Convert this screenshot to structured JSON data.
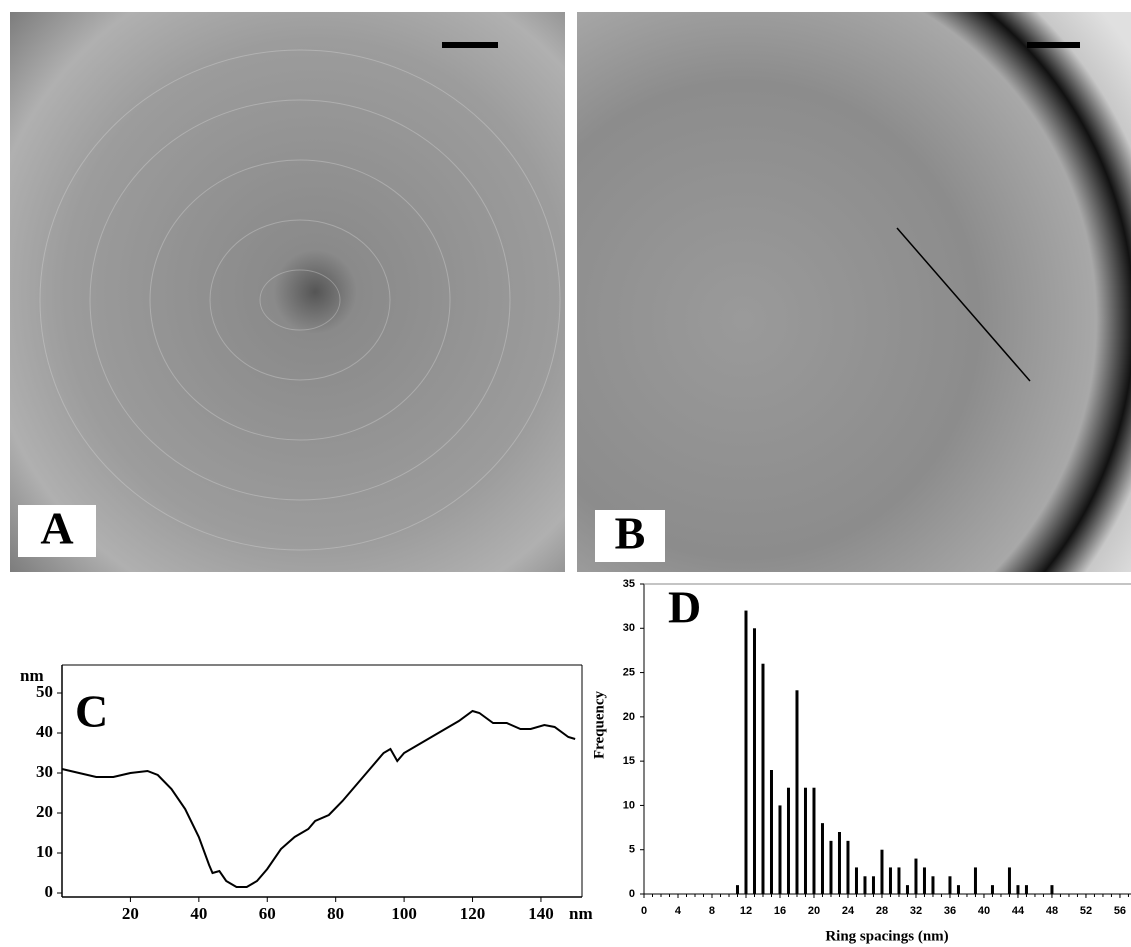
{
  "images": [
    {
      "label": "A"
    },
    {
      "label": "B"
    }
  ],
  "chart_data": [
    {
      "type": "line",
      "label": "C",
      "y_unit": "nm",
      "x_unit": "nm",
      "x": [
        0,
        5,
        10,
        15,
        20,
        25,
        28,
        32,
        36,
        40,
        43,
        44,
        46,
        48,
        51,
        54,
        57,
        60,
        64,
        68,
        72,
        74,
        78,
        82,
        86,
        90,
        94,
        96,
        98,
        100,
        104,
        108,
        112,
        116,
        120,
        122,
        126,
        130,
        134,
        137,
        141,
        144,
        148,
        150
      ],
      "series": [
        {
          "color": "#000000",
          "values": [
            31,
            30,
            29,
            29,
            30,
            30.5,
            29.5,
            26,
            21,
            14,
            7,
            5,
            5.5,
            3,
            1.5,
            1.5,
            3,
            6,
            11,
            14,
            16,
            18,
            19.5,
            23,
            27,
            31,
            35,
            36,
            33,
            35,
            37,
            39,
            41,
            43,
            45.5,
            45,
            42.5,
            42.5,
            41,
            41,
            42,
            41.5,
            39,
            38.5
          ]
        }
      ],
      "xlim": [
        0,
        152
      ],
      "xticks": [
        20,
        40,
        60,
        80,
        100,
        120,
        140
      ],
      "ylim": [
        -1,
        57
      ],
      "yticks": [
        0,
        10,
        20,
        30,
        40,
        50
      ]
    },
    {
      "type": "bar",
      "label": "D",
      "ylabel": "Frequency",
      "xlabel": "Ring spacings (nm)",
      "color": "#000000",
      "x": [
        11,
        12,
        13,
        14,
        15,
        16,
        17,
        18,
        19,
        20,
        21,
        22,
        23,
        24,
        25,
        26,
        27,
        28,
        29,
        30,
        31,
        32,
        33,
        34,
        36,
        37,
        39,
        41,
        43,
        44,
        45,
        48
      ],
      "values": [
        1,
        32,
        30,
        26,
        14,
        10,
        12,
        23,
        12,
        12,
        8,
        6,
        7,
        6,
        3,
        2,
        2,
        5,
        3,
        3,
        1,
        4,
        3,
        2,
        2,
        1,
        3,
        1,
        3,
        1,
        1,
        1
      ],
      "xlim": [
        0,
        57.3
      ],
      "xticks": [
        0,
        4,
        8,
        12,
        16,
        20,
        24,
        28,
        32,
        36,
        40,
        44,
        48,
        52,
        56
      ],
      "ylim": [
        0,
        35
      ],
      "yticks": [
        0,
        5,
        10,
        15,
        20,
        25,
        30,
        35
      ]
    }
  ]
}
